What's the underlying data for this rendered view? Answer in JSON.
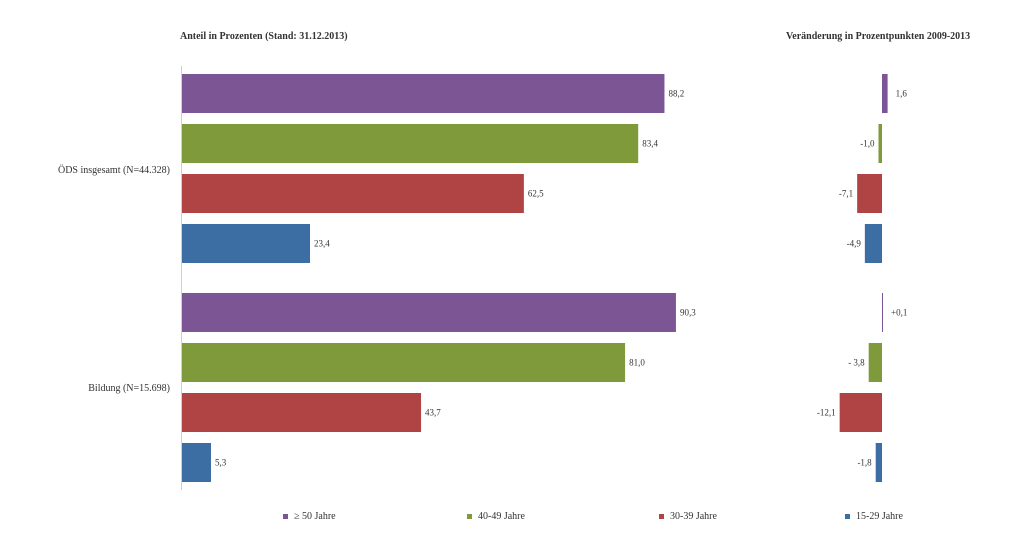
{
  "chart_data": {
    "type": "bar",
    "orientation": "horizontal",
    "left_title": "Anteil in Prozenten (Stand: 31.12.2013)",
    "right_title": "Veränderung in Prozentpunkten 2009-2013",
    "groups": [
      {
        "label": "ÖDS insgesamt (N=44.328)",
        "values": [
          88.2,
          83.4,
          62.5,
          23.4
        ],
        "value_labels": [
          "88,2",
          "83,4",
          "62,5",
          "23,4"
        ],
        "changes": [
          1.6,
          -1.0,
          -7.1,
          -4.9
        ],
        "change_labels": [
          "1,6",
          "-1,0",
          "-7,1",
          "-4,9"
        ]
      },
      {
        "label": "Bildung (N=15.698)",
        "values": [
          90.3,
          81.0,
          43.7,
          5.3
        ],
        "value_labels": [
          "90,3",
          "81,0",
          "43,7",
          "5,3"
        ],
        "changes": [
          0.1,
          -3.8,
          -12.1,
          -1.8
        ],
        "change_labels": [
          "+0,1",
          "- 3,8",
          "-12,1",
          "-1,8"
        ]
      }
    ],
    "series": [
      {
        "name": "≥ 50 Jahre",
        "color": "#7b5594"
      },
      {
        "name": "40-49 Jahre",
        "color": "#7e9a3a"
      },
      {
        "name": "30-39 Jahre",
        "color": "#b04444"
      },
      {
        "name": "15-29 Jahre",
        "color": "#3d6ea3"
      }
    ],
    "legend_position": "bottom",
    "xlim": [
      0,
      100
    ],
    "change_lim": [
      -20,
      5
    ],
    "grid": false
  }
}
